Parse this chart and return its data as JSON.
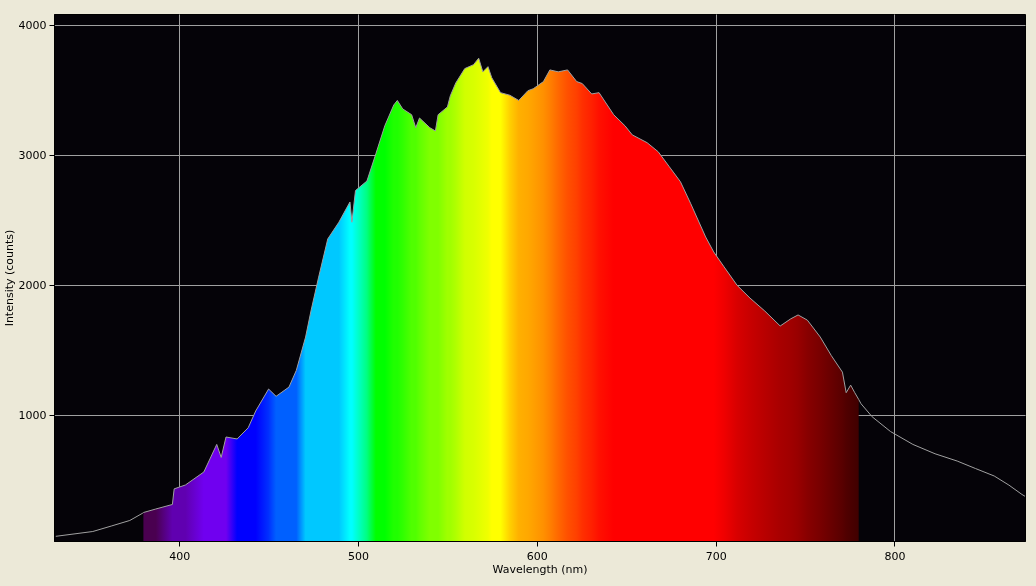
{
  "chart_data": {
    "type": "line",
    "xlabel": "Wavelength (nm)",
    "ylabel": "Intensity (counts)",
    "xlim": [
      330,
      873
    ],
    "ylim": [
      31,
      4085
    ],
    "xticks": [
      400,
      500,
      600,
      700,
      800
    ],
    "yticks": [
      1000,
      2000,
      3000,
      4000
    ],
    "grid": true,
    "series": [
      {
        "type": "area",
        "colors": [
          "#4a0050",
          "#4a0050",
          "#6000b0",
          "#6000b0",
          "#6000b0",
          "#7000f0",
          "#7000f0",
          "#7000f0",
          "#7000f0",
          "#0000ff",
          "#0000ff",
          "#0000ff",
          "#0030ff",
          "#0060ff",
          "#0060ff",
          "#0060ff",
          "#00c8ff",
          "#00c8ff",
          "#00c8ff",
          "#00c8ff",
          "#00c8ff",
          "#00ffff",
          "#00ffff",
          "#00ffe0",
          "#00ff80",
          "#00ff00",
          "#00ff00",
          "#20ff00",
          "#20ff00",
          "#30ff00",
          "#50ff00",
          "#50ff00",
          "#60ff00",
          "#80ff00",
          "#80ff00",
          "#80ff00",
          "#a0ff00",
          "#a0ff00",
          "#b0ff00",
          "#d0ff00",
          "#d8ff00",
          "#e0ff00",
          "#e8ff00",
          "#f0ff00",
          "#ffff00",
          "#ffff00",
          "#ffd000",
          "#ffb000",
          "#ffa800",
          "#ffa000",
          "#ff9000",
          "#ff8000",
          "#ff6800",
          "#ff5000",
          "#ff4000",
          "#ff3000",
          "#ff2000",
          "#ff1000",
          "#ff0000",
          "#ff0000",
          "#ff0000",
          "#ff0000",
          "#ff0000",
          "#ff0000",
          "#ff0000",
          "#ff0000",
          "#ff0000",
          "#ff0000",
          "#f00000",
          "#d80000",
          "#c80000",
          "#b80000",
          "#a80000",
          "#a00000",
          "#980000",
          "#880000",
          "#780000",
          "#680000",
          "#580000",
          "#500000",
          "#4a0000",
          "#450000",
          "#400000"
        ],
        "x": [
          380,
          386.9,
          396.2,
          397.2,
          403.5,
          413.8,
          421,
          423.5,
          426.2,
          432.4,
          438.6,
          442.8,
          450,
          454.2,
          461.4,
          465.5,
          470.7,
          473.7,
          477.9,
          483.1,
          489.3,
          495.5,
          496.6,
          498.6,
          505,
          510,
          515,
          520,
          522,
          525,
          530,
          532.3,
          534.4,
          540.2,
          543.3,
          544.8,
          550,
          551.6,
          554.7,
          559.7,
          564.6,
          567.5,
          569.8,
          572.7,
          574.8,
          579.7,
          584.9,
          589.9,
          595,
          598,
          603.7,
          607.3,
          612,
          617.2,
          622.3,
          625.4,
          630.7,
          634.8,
          643,
          649.3,
          653.4,
          661.7,
          667.9,
          674.1,
          680.3,
          686.1,
          694.4,
          698.9,
          704.7,
          712,
          719.2,
          727.5,
          736.1,
          742,
          746.1,
          751.3,
          758.5,
          764.7,
          770.9,
          773,
          775.5,
          777.8,
          780
        ],
        "values": [
          250,
          277,
          312,
          432,
          462,
          562,
          774,
          674,
          831,
          816,
          902,
          1031,
          1200,
          1144,
          1215,
          1343,
          1600,
          1800,
          2055,
          2355,
          2483,
          2639,
          2483,
          2727,
          2800,
          3010,
          3225,
          3385,
          3420,
          3355,
          3310,
          3210,
          3285,
          3210,
          3185,
          3310,
          3370,
          3455,
          3555,
          3665,
          3695,
          3745,
          3640,
          3680,
          3595,
          3480,
          3460,
          3420,
          3495,
          3510,
          3565,
          3655,
          3640,
          3655,
          3565,
          3550,
          3470,
          3480,
          3310,
          3225,
          3155,
          3095,
          3025,
          2910,
          2795,
          2625,
          2370,
          2255,
          2140,
          1998,
          1900,
          1800,
          1685,
          1740,
          1770,
          1730,
          1600,
          1457,
          1330,
          1172,
          1230,
          1172,
          1120
        ]
      },
      {
        "color": "#a0a0a0",
        "x": [
          331,
          351.7,
          362,
          372.4,
          379.7,
          380,
          386.9,
          396.2,
          397.2,
          403.5,
          413.8,
          421,
          423.5,
          426.2,
          432.4,
          438.6,
          442.8,
          450,
          454.2,
          461.4,
          465.5,
          470.7,
          473.7,
          477.9,
          483.1,
          489.3,
          495.5,
          496.6,
          498.6,
          505,
          510,
          515,
          520,
          522,
          525,
          530,
          532.3,
          534.4,
          540.2,
          543.3,
          544.8,
          550,
          551.6,
          554.7,
          559.7,
          564.6,
          567.5,
          569.8,
          572.7,
          574.8,
          579.7,
          584.9,
          589.9,
          595,
          598,
          603.7,
          607.3,
          612,
          617.2,
          622.3,
          625.4,
          630.7,
          634.8,
          643,
          649.3,
          653.4,
          661.7,
          667.9,
          674.1,
          680.3,
          686.1,
          694.4,
          698.9,
          704.7,
          712,
          719.2,
          727.5,
          736.1,
          742,
          746.1,
          751.3,
          758.5,
          764.7,
          770.9,
          773,
          775.5,
          777.8,
          780,
          781.3,
          787.5,
          797.8,
          810.3,
          822.7,
          835.1,
          845.4,
          855.8,
          864,
          871.3,
          873
        ],
        "values": [
          67,
          104,
          146,
          189,
          246,
          250,
          277,
          312,
          432,
          462,
          562,
          774,
          674,
          831,
          816,
          902,
          1031,
          1200,
          1144,
          1215,
          1343,
          1600,
          1800,
          2055,
          2355,
          2483,
          2639,
          2483,
          2727,
          2800,
          3010,
          3225,
          3385,
          3420,
          3355,
          3310,
          3210,
          3285,
          3210,
          3185,
          3310,
          3370,
          3455,
          3555,
          3665,
          3695,
          3745,
          3640,
          3680,
          3595,
          3480,
          3460,
          3420,
          3495,
          3510,
          3565,
          3655,
          3640,
          3655,
          3565,
          3550,
          3470,
          3480,
          3310,
          3225,
          3155,
          3095,
          3025,
          2910,
          2795,
          2625,
          2370,
          2255,
          2140,
          1998,
          1900,
          1800,
          1685,
          1740,
          1770,
          1730,
          1600,
          1457,
          1330,
          1172,
          1230,
          1172,
          1120,
          1087,
          987,
          873,
          774,
          702,
          646,
          588,
          531,
          461,
          389,
          375
        ]
      }
    ]
  }
}
